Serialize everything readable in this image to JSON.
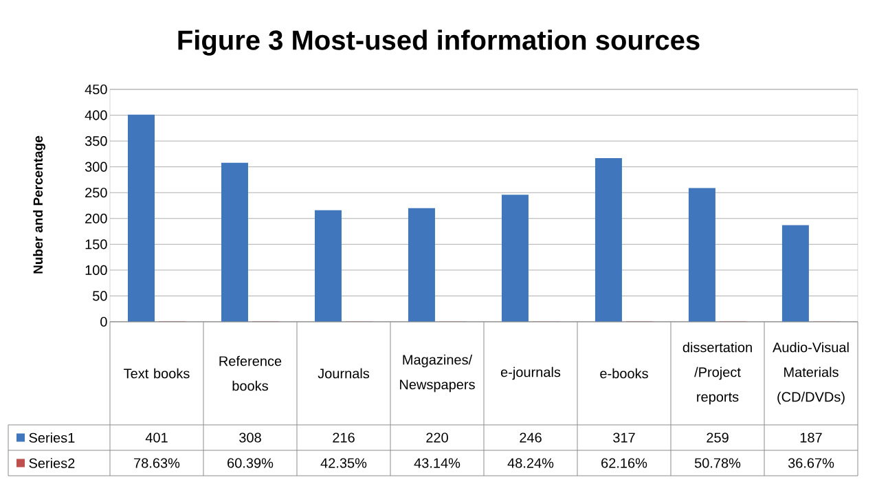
{
  "chart_data": {
    "type": "bar",
    "title": "Figure 3 Most-used information sources",
    "ylabel": "Nuber and Percentage",
    "categories": [
      "Text books",
      "Reference books",
      "Journals",
      "Magazines/ Newspapers",
      "e-journals",
      "e-books",
      "dissertation /Project reports",
      "Audio-Visual Materials (CD/DVDs)"
    ],
    "series": [
      {
        "name": "Series1",
        "color": "#4077bc",
        "values": [
          401,
          308,
          216,
          220,
          246,
          317,
          259,
          187
        ],
        "value_labels": [
          "401",
          "308",
          "216",
          "220",
          "246",
          "317",
          "259",
          "187"
        ]
      },
      {
        "name": "Series2",
        "color": "#c0504d",
        "values": [
          0.7863,
          0.6039,
          0.4235,
          0.4314,
          0.4824,
          0.6216,
          0.5078,
          0.3667
        ],
        "value_labels": [
          "78.63%",
          "60.39%",
          "42.35%",
          "43.14%",
          "48.24%",
          "62.16%",
          "50.78%",
          "36.67%"
        ]
      }
    ],
    "ylim": [
      0,
      450
    ],
    "yticks": [
      0,
      50,
      100,
      150,
      200,
      250,
      300,
      350,
      400,
      450
    ],
    "grid": "y",
    "legend": "bottom"
  }
}
